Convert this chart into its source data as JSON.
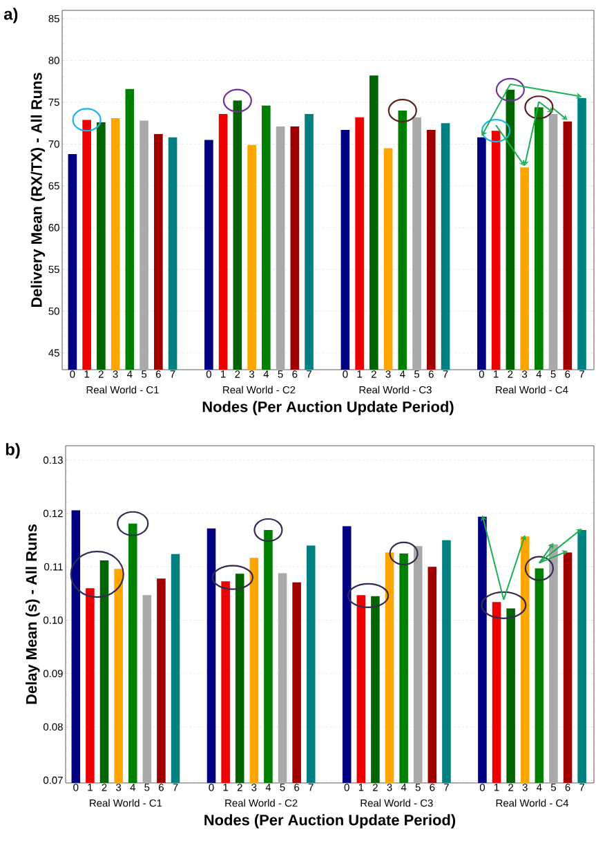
{
  "chart_data": [
    {
      "type": "bar",
      "annotations": [
        "a)"
      ],
      "xlabel": "Nodes (Per Auction Update Period)",
      "ylabel": "Delivery Mean (RX/TX) - All Runs",
      "categories": [
        "Real World - C1",
        "Real World - C2",
        "Real World - C3",
        "Real World - C4"
      ],
      "ylim": [
        43,
        86
      ],
      "yticks": [
        45,
        50,
        55,
        60,
        65,
        70,
        75,
        80,
        85
      ],
      "grid": "y",
      "series": [
        {
          "name": "0",
          "color": "#000080",
          "values": [
            68.8,
            70.5,
            71.7,
            70.8
          ]
        },
        {
          "name": "1",
          "color": "#ee0000",
          "values": [
            72.9,
            73.6,
            73.2,
            71.6
          ]
        },
        {
          "name": "2",
          "color": "#006400",
          "values": [
            72.6,
            75.2,
            78.2,
            76.5
          ]
        },
        {
          "name": "3",
          "color": "#ffa500",
          "values": [
            73.1,
            69.9,
            69.5,
            67.2
          ]
        },
        {
          "name": "4",
          "color": "#008000",
          "values": [
            76.6,
            74.6,
            74.0,
            74.4
          ]
        },
        {
          "name": "5",
          "color": "#a9a9a9",
          "values": [
            72.8,
            72.1,
            73.2,
            73.6
          ]
        },
        {
          "name": "6",
          "color": "#a00000",
          "values": [
            71.2,
            72.1,
            71.7,
            72.7
          ]
        },
        {
          "name": "7",
          "color": "#008080",
          "values": [
            70.8,
            73.6,
            72.5,
            75.5
          ]
        }
      ]
    },
    {
      "type": "bar",
      "annotations": [
        "b)"
      ],
      "xlabel": "Nodes (Per Auction Update Period)",
      "ylabel": "Delay Mean (s) - All Runs",
      "categories": [
        "Real World - C1",
        "Real World - C2",
        "Real World - C3",
        "Real World - C4"
      ],
      "ylim": [
        0.0695,
        0.1327
      ],
      "yticks": [
        0.07,
        0.08,
        0.09,
        {
          "value": 0.1,
          "label": "0.10"
        },
        0.11,
        0.12,
        0.13
      ],
      "grid": "y",
      "series": [
        {
          "name": "0",
          "color": "#000080",
          "values": [
            0.1206,
            0.1172,
            0.1176,
            0.1194
          ]
        },
        {
          "name": "1",
          "color": "#ee0000",
          "values": [
            0.106,
            0.1073,
            0.1047,
            0.1034
          ]
        },
        {
          "name": "2",
          "color": "#006400",
          "values": [
            0.1112,
            0.1087,
            0.1045,
            0.1022
          ]
        },
        {
          "name": "3",
          "color": "#ffa500",
          "values": [
            0.1096,
            0.1117,
            0.1127,
            0.1157
          ]
        },
        {
          "name": "4",
          "color": "#008000",
          "values": [
            0.1181,
            0.1169,
            0.1125,
            0.1097
          ]
        },
        {
          "name": "5",
          "color": "#a9a9a9",
          "values": [
            0.1047,
            0.1088,
            0.1139,
            0.1142
          ]
        },
        {
          "name": "6",
          "color": "#a00000",
          "values": [
            0.1078,
            0.1071,
            0.11,
            0.1127
          ]
        },
        {
          "name": "7",
          "color": "#008080",
          "values": [
            0.1124,
            0.114,
            0.115,
            0.1169
          ]
        }
      ]
    }
  ]
}
